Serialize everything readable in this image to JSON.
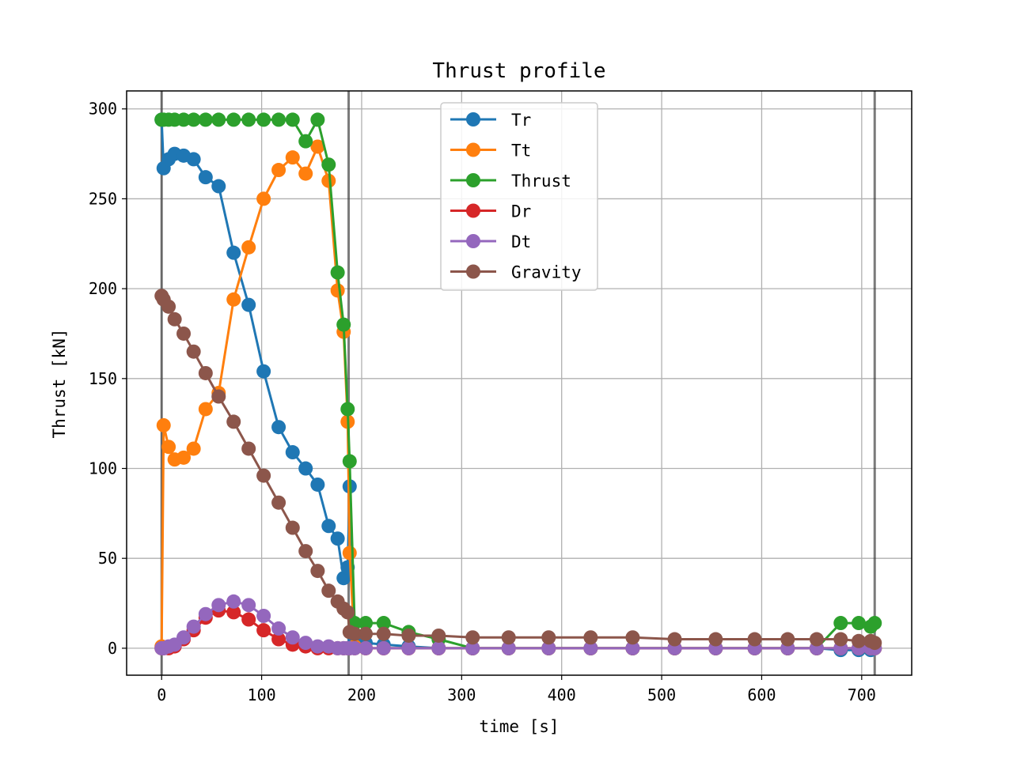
{
  "chart_data": {
    "type": "line",
    "title": "Thrust profile",
    "xlabel": "time [s]",
    "ylabel": "Thrust [kN]",
    "xlim": [
      -35,
      750
    ],
    "ylim": [
      -15,
      310
    ],
    "xticks": [
      0,
      100,
      200,
      300,
      400,
      500,
      600,
      700
    ],
    "yticks": [
      0,
      50,
      100,
      150,
      200,
      250,
      300
    ],
    "grid": true,
    "legend_position": "top-center",
    "vertical_lines": [
      0,
      187,
      713
    ],
    "series": [
      {
        "name": "Tr",
        "color": "#1f77b4",
        "x": [
          0,
          2,
          7,
          13,
          22,
          32,
          44,
          57,
          72,
          87,
          102,
          117,
          131,
          144,
          156,
          167,
          176,
          182,
          186,
          188,
          193,
          204,
          222,
          247,
          277,
          311,
          347,
          387,
          429,
          471,
          513,
          554,
          593,
          626,
          655,
          679,
          697,
          709,
          713
        ],
        "y": [
          294,
          267,
          272,
          275,
          274,
          272,
          262,
          257,
          220,
          191,
          154,
          123,
          109,
          100,
          91,
          68,
          61,
          39,
          45,
          90,
          5,
          3,
          2,
          1,
          0,
          0,
          0,
          0,
          0,
          0,
          0,
          0,
          0,
          0,
          0,
          -1,
          -1,
          -1,
          0
        ]
      },
      {
        "name": "Tt",
        "color": "#ff7f0e",
        "x": [
          0,
          2,
          7,
          13,
          22,
          32,
          44,
          57,
          72,
          87,
          102,
          117,
          131,
          144,
          156,
          167,
          176,
          182,
          186,
          188,
          193,
          204,
          222,
          247,
          277,
          311,
          347,
          387,
          429,
          471,
          513,
          554,
          593,
          626,
          655,
          679,
          697,
          709,
          713
        ],
        "y": [
          1,
          124,
          112,
          105,
          106,
          111,
          133,
          142,
          194,
          223,
          250,
          266,
          273,
          264,
          279,
          260,
          199,
          176,
          126,
          53,
          1,
          0,
          0,
          0,
          0,
          0,
          0,
          0,
          0,
          0,
          0,
          0,
          0,
          0,
          0,
          0,
          0,
          0,
          0
        ]
      },
      {
        "name": "Thrust",
        "color": "#2ca02c",
        "x": [
          0,
          2,
          7,
          13,
          22,
          32,
          44,
          57,
          72,
          87,
          102,
          117,
          131,
          144,
          156,
          167,
          176,
          182,
          186,
          188,
          193,
          204,
          222,
          247,
          277,
          311,
          347,
          387,
          429,
          471,
          513,
          554,
          593,
          626,
          655,
          679,
          697,
          709,
          713
        ],
        "y": [
          294,
          294,
          294,
          294,
          294,
          294,
          294,
          294,
          294,
          294,
          294,
          294,
          294,
          282,
          294,
          269,
          209,
          180,
          133,
          104,
          14,
          14,
          14,
          9,
          5,
          0,
          0,
          0,
          0,
          0,
          0,
          0,
          0,
          0,
          0,
          14,
          14,
          12,
          14
        ]
      },
      {
        "name": "Dr",
        "color": "#d62728",
        "x": [
          0,
          2,
          7,
          13,
          22,
          32,
          44,
          57,
          72,
          87,
          102,
          117,
          131,
          144,
          156,
          167,
          176,
          182,
          186,
          188,
          193,
          204,
          222,
          247,
          277,
          311,
          347,
          387,
          429,
          471,
          513,
          554,
          593,
          626,
          655,
          679,
          697,
          709,
          713
        ],
        "y": [
          0,
          0,
          0,
          1,
          5,
          10,
          17,
          21,
          20,
          16,
          10,
          5,
          2,
          1,
          0,
          0,
          0,
          0,
          0,
          0,
          0,
          0,
          0,
          0,
          0,
          0,
          0,
          0,
          0,
          0,
          0,
          0,
          0,
          0,
          0,
          0,
          0,
          0,
          0
        ]
      },
      {
        "name": "Dt",
        "color": "#9467bd",
        "x": [
          0,
          2,
          7,
          13,
          22,
          32,
          44,
          57,
          72,
          87,
          102,
          117,
          131,
          144,
          156,
          167,
          176,
          182,
          186,
          188,
          193,
          204,
          222,
          247,
          277,
          311,
          347,
          387,
          429,
          471,
          513,
          554,
          593,
          626,
          655,
          679,
          697,
          709,
          713
        ],
        "y": [
          0,
          0,
          1,
          2,
          6,
          12,
          19,
          24,
          26,
          24,
          18,
          11,
          6,
          3,
          1,
          1,
          0,
          0,
          0,
          0,
          0,
          0,
          0,
          0,
          0,
          0,
          0,
          0,
          0,
          0,
          0,
          0,
          0,
          0,
          0,
          0,
          0,
          0,
          0
        ]
      },
      {
        "name": "Gravity",
        "color": "#8c564b",
        "x": [
          0,
          2,
          7,
          13,
          22,
          32,
          44,
          57,
          72,
          87,
          102,
          117,
          131,
          144,
          156,
          167,
          176,
          182,
          186,
          188,
          193,
          204,
          222,
          247,
          277,
          311,
          347,
          387,
          429,
          471,
          513,
          554,
          593,
          626,
          655,
          679,
          697,
          709,
          713
        ],
        "y": [
          196,
          194,
          190,
          183,
          175,
          165,
          153,
          140,
          126,
          111,
          96,
          81,
          67,
          54,
          43,
          32,
          26,
          22,
          20,
          9,
          8,
          8,
          8,
          7,
          7,
          6,
          6,
          6,
          6,
          6,
          5,
          5,
          5,
          5,
          5,
          5,
          4,
          4,
          3
        ]
      }
    ]
  }
}
